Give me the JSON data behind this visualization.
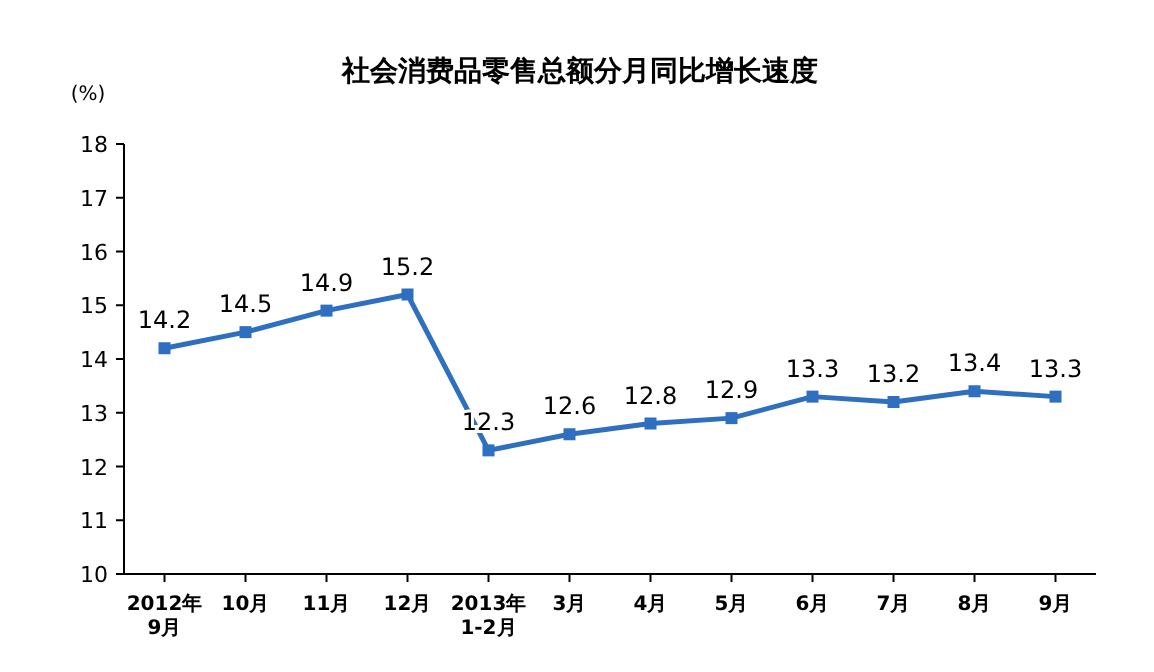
{
  "chart_data": {
    "type": "line",
    "title": "社会消费品零售总额分月同比增长速度",
    "ylabel": "(%)",
    "categories": [
      "2012年\n9月",
      "10月",
      "11月",
      "12月",
      "2013年\n1-2月",
      "3月",
      "4月",
      "5月",
      "6月",
      "7月",
      "8月",
      "9月"
    ],
    "series": [
      {
        "color": "#2e6fc0",
        "values": [
          14.2,
          14.5,
          14.9,
          15.2,
          12.3,
          12.6,
          12.8,
          12.9,
          13.3,
          13.2,
          13.4,
          13.3
        ]
      }
    ],
    "ylim": [
      10,
      18
    ],
    "yticks": [
      10,
      11,
      12,
      13,
      14,
      15,
      16,
      17,
      18
    ],
    "data_labels": true,
    "marker": "square",
    "line_style": "solid",
    "grid": false
  }
}
